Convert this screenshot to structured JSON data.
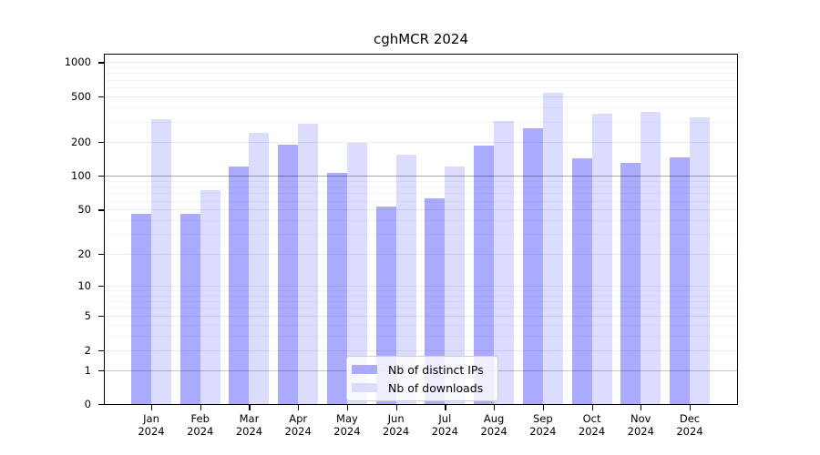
{
  "chart_data": {
    "type": "bar",
    "title": "cghMCR 2024",
    "months": [
      "Jan",
      "Feb",
      "Mar",
      "Apr",
      "May",
      "Jun",
      "Jul",
      "Aug",
      "Sep",
      "Oct",
      "Nov",
      "Dec"
    ],
    "year": "2024",
    "series": [
      {
        "name": "Nb of distinct IPs",
        "color": "#aaaaff",
        "values": [
          46,
          46,
          120,
          187,
          106,
          53,
          63,
          186,
          262,
          142,
          131,
          145
        ]
      },
      {
        "name": "Nb of downloads",
        "color": "#dcdcff",
        "values": [
          315,
          74,
          240,
          287,
          197,
          155,
          120,
          304,
          535,
          354,
          368,
          330
        ]
      }
    ],
    "y_ticks": [
      0,
      1,
      2,
      5,
      10,
      20,
      50,
      100,
      200,
      500,
      1000
    ],
    "y_minor_ticks": [
      3,
      4,
      6,
      7,
      8,
      9,
      30,
      40,
      60,
      70,
      80,
      90,
      300,
      400,
      600,
      700,
      800,
      900
    ],
    "y_scale": "log10(value+1)",
    "ylim": [
      0,
      1200
    ],
    "grid": "horizontal",
    "legend_position": "bottom-center",
    "frame_color": "#000000"
  }
}
